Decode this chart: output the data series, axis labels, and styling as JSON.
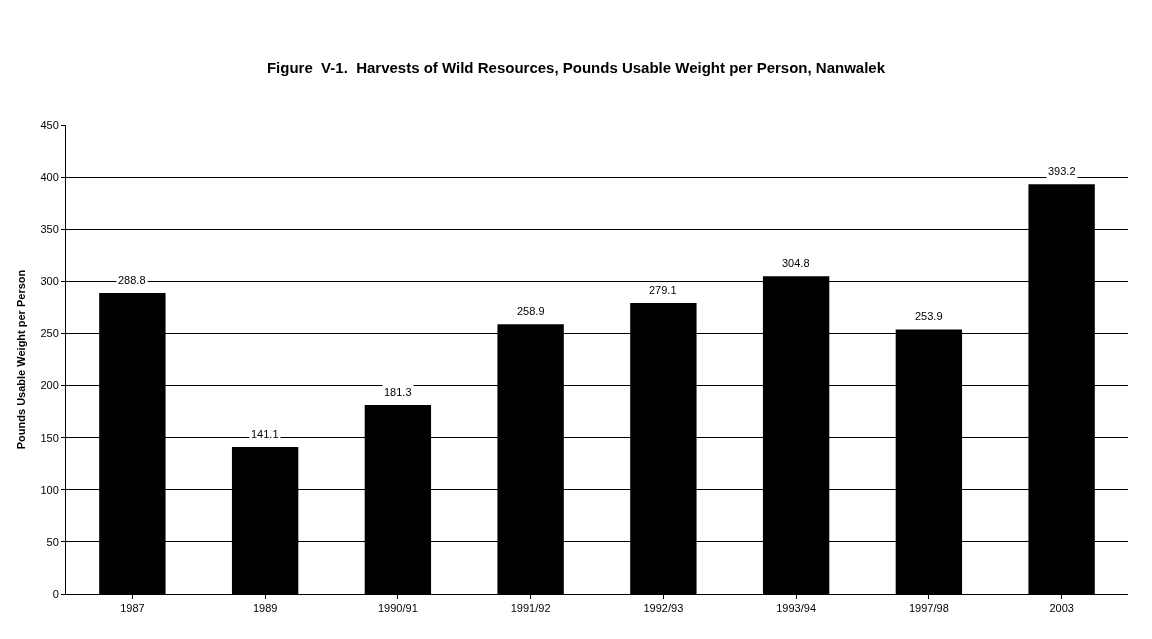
{
  "chart_data": {
    "type": "bar",
    "title": "Figure  V-1.  Harvests of Wild Resources, Pounds Usable Weight per Person, Nanwalek",
    "ylabel": "Pounds Usable Weight per Person",
    "categories": [
      "1987",
      "1989",
      "1990/91",
      "1991/92",
      "1992/93",
      "1993/94",
      "1997/98",
      "2003"
    ],
    "values": [
      288.8,
      141.1,
      181.3,
      258.9,
      279.1,
      304.8,
      253.9,
      393.2
    ],
    "color": "#000000",
    "ylim": [
      0,
      450
    ],
    "yticks": [
      0,
      50,
      100,
      150,
      200,
      250,
      300,
      350,
      400,
      450
    ],
    "grid": "y",
    "data_labels": true,
    "legend": false
  }
}
